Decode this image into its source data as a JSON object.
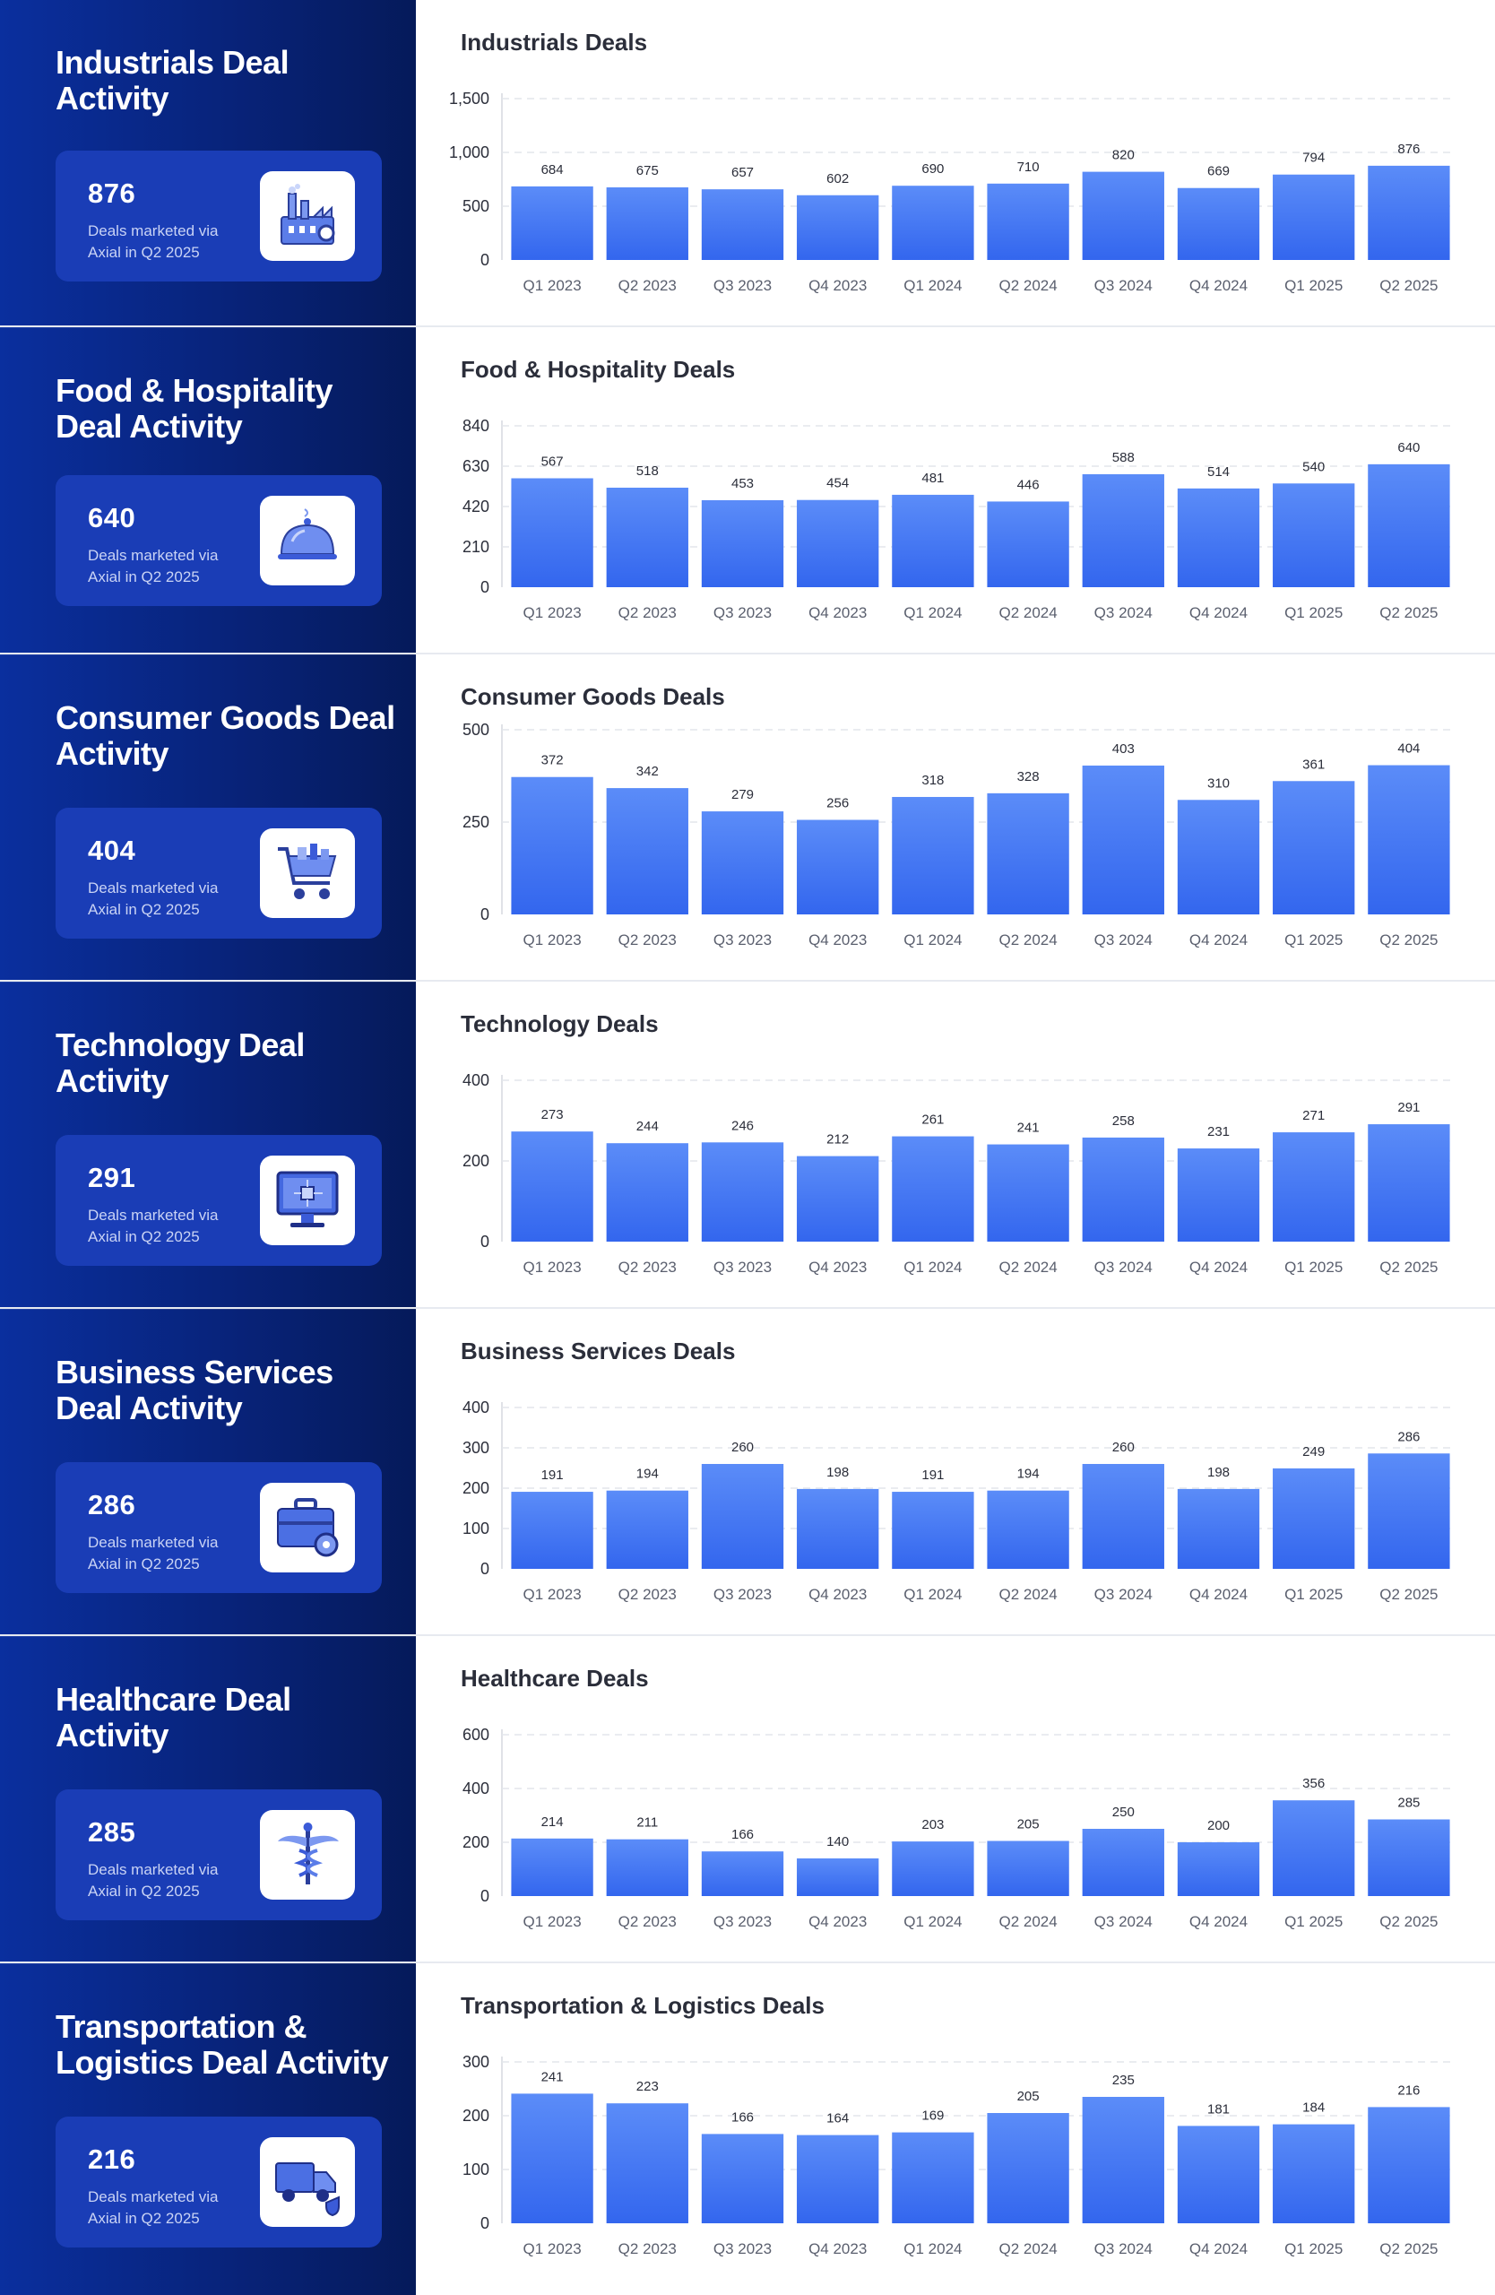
{
  "footer_text": "Deals marketed via\nAxial in Q2 2025",
  "colors": {
    "panel_bg_start": "#0a2f9e",
    "panel_bg_end": "#051a5a",
    "card_bg": "#1a3db6",
    "bar_top": "#5b8cf8",
    "bar_bottom": "#3366ee"
  },
  "sections": [
    {
      "id": "industrials",
      "title": "Industrials Deal\nActivity",
      "stat_value": "876",
      "icon": "factory-icon",
      "chart_data": {
        "type": "bar",
        "title": "Industrials Deals",
        "categories": [
          "Q1 2023",
          "Q2 2023",
          "Q3 2023",
          "Q4 2023",
          "Q1 2024",
          "Q2 2024",
          "Q3 2024",
          "Q4 2024",
          "Q1 2025",
          "Q2 2025"
        ],
        "values": [
          684,
          675,
          657,
          602,
          690,
          710,
          820,
          669,
          794,
          876
        ],
        "data_labels": [
          "684",
          "675",
          "657",
          "602",
          "690",
          "710",
          "820",
          "669",
          "794",
          "876"
        ],
        "yticks": [
          "0",
          "500",
          "1,000",
          "1,500"
        ],
        "ylim": [
          0,
          1500
        ],
        "grid": true
      }
    },
    {
      "id": "food",
      "title": "Food & Hospitality\nDeal Activity",
      "stat_value": "640",
      "icon": "cloche-icon",
      "chart_data": {
        "type": "bar",
        "title": "Food & Hospitality Deals",
        "categories": [
          "Q1 2023",
          "Q2 2023",
          "Q3 2023",
          "Q4 2023",
          "Q1 2024",
          "Q2 2024",
          "Q3 2024",
          "Q4 2024",
          "Q1 2025",
          "Q2 2025"
        ],
        "values": [
          567,
          518,
          453,
          454,
          481,
          446,
          588,
          514,
          540,
          640
        ],
        "data_labels": [
          "567",
          "518",
          "453",
          "454",
          "481",
          "446",
          "588",
          "514",
          "540",
          "640"
        ],
        "yticks": [
          "0",
          "210",
          "420",
          "630",
          "840"
        ],
        "ylim": [
          0,
          840
        ],
        "grid": true
      }
    },
    {
      "id": "consumer",
      "title": "Consumer Goods Deal\nActivity",
      "stat_value": "404",
      "icon": "shopping-cart-icon",
      "chart_data": {
        "type": "bar",
        "title": "Consumer Goods Deals",
        "categories": [
          "Q1 2023",
          "Q2 2023",
          "Q3 2023",
          "Q4 2023",
          "Q1  2024",
          "Q2 2024",
          "Q3 2024",
          "Q4 2024",
          "Q1 2025",
          "Q2 2025"
        ],
        "values": [
          372,
          342,
          279,
          256,
          318,
          328,
          403,
          310,
          361,
          404
        ],
        "data_labels": [
          "372",
          "342",
          "279",
          "256",
          "318",
          "328",
          "403",
          "310",
          "361",
          "404"
        ],
        "yticks": [
          "0",
          "250",
          "500"
        ],
        "ylim": [
          0,
          500
        ],
        "grid": true
      }
    },
    {
      "id": "technology",
      "title": "Technology Deal\nActivity",
      "stat_value": "291",
      "icon": "computer-monitor-icon",
      "chart_data": {
        "type": "bar",
        "title": "Technology Deals",
        "categories": [
          "Q1 2023",
          "Q2 2023",
          "Q3 2023",
          "Q4 2023",
          "Q1 2024",
          "Q2 2024",
          "Q3 2024",
          "Q4 2024",
          "Q1 2025",
          "Q2 2025"
        ],
        "values": [
          273,
          244,
          246,
          212,
          261,
          241,
          258,
          231,
          271,
          291
        ],
        "data_labels": [
          "273",
          "244",
          "246",
          "212",
          "261",
          "241",
          "258",
          "231",
          "271",
          "291"
        ],
        "yticks": [
          "0",
          "200",
          "400"
        ],
        "ylim": [
          0,
          400
        ],
        "grid": true
      }
    },
    {
      "id": "business",
      "title": "Business Services\nDeal Activity",
      "stat_value": "286",
      "icon": "briefcase-gear-icon",
      "chart_data": {
        "type": "bar",
        "title": "Business Services Deals",
        "categories": [
          "Q1 2023",
          "Q2 2023",
          "Q3 2023",
          "Q4 2023",
          "Q1 2024",
          "Q2 2024",
          "Q3 2024",
          "Q4 2024",
          "Q1 2025",
          "Q2 2025"
        ],
        "values": [
          191,
          194,
          260,
          198,
          191,
          194,
          260,
          198,
          249,
          286
        ],
        "data_labels": [
          "191",
          "194",
          "260",
          "198",
          "191",
          "194",
          "260",
          "198",
          "249",
          "286"
        ],
        "yticks": [
          "0",
          "100",
          "200",
          "300",
          "400"
        ],
        "ylim": [
          0,
          400
        ],
        "grid": true
      }
    },
    {
      "id": "healthcare",
      "title": "Healthcare Deal\nActivity",
      "stat_value": "285",
      "icon": "caduceus-icon",
      "chart_data": {
        "type": "bar",
        "title": "Healthcare Deals",
        "categories": [
          "Q1 2023",
          "Q2 2023",
          "Q3 2023",
          "Q4 2023",
          "Q1 2024",
          "Q2 2024",
          "Q3 2024",
          "Q4 2024",
          "Q1 2025",
          "Q2 2025"
        ],
        "values": [
          214,
          211,
          166,
          140,
          203,
          205,
          250,
          200,
          356,
          285
        ],
        "data_labels": [
          "214",
          "211",
          "166",
          "140",
          "203",
          "205",
          "250",
          "200",
          "356",
          "285"
        ],
        "yticks": [
          "0",
          "200",
          "400",
          "600"
        ],
        "ylim": [
          0,
          600
        ],
        "grid": true
      }
    },
    {
      "id": "transportation",
      "title": "Transportation &\nLogistics Deal Activity",
      "stat_value": "216",
      "icon": "delivery-truck-icon",
      "chart_data": {
        "type": "bar",
        "title": "Transportation & Logistics Deals",
        "categories": [
          "Q1 2023",
          "Q2 2023",
          "Q3 2023",
          "Q4 2023",
          "Q1 2024",
          "Q2 2024",
          "Q3 2024",
          "Q4 2024",
          "Q1 2025",
          "Q2 2025"
        ],
        "values": [
          241,
          223,
          166,
          164,
          169,
          205,
          235,
          181,
          184,
          216
        ],
        "data_labels": [
          "241",
          "223",
          "166",
          "164",
          "169",
          "205",
          "235",
          "181",
          "184",
          "216"
        ],
        "yticks": [
          "0",
          "100",
          "200",
          "300"
        ],
        "ylim": [
          0,
          300
        ],
        "grid": true
      }
    }
  ]
}
